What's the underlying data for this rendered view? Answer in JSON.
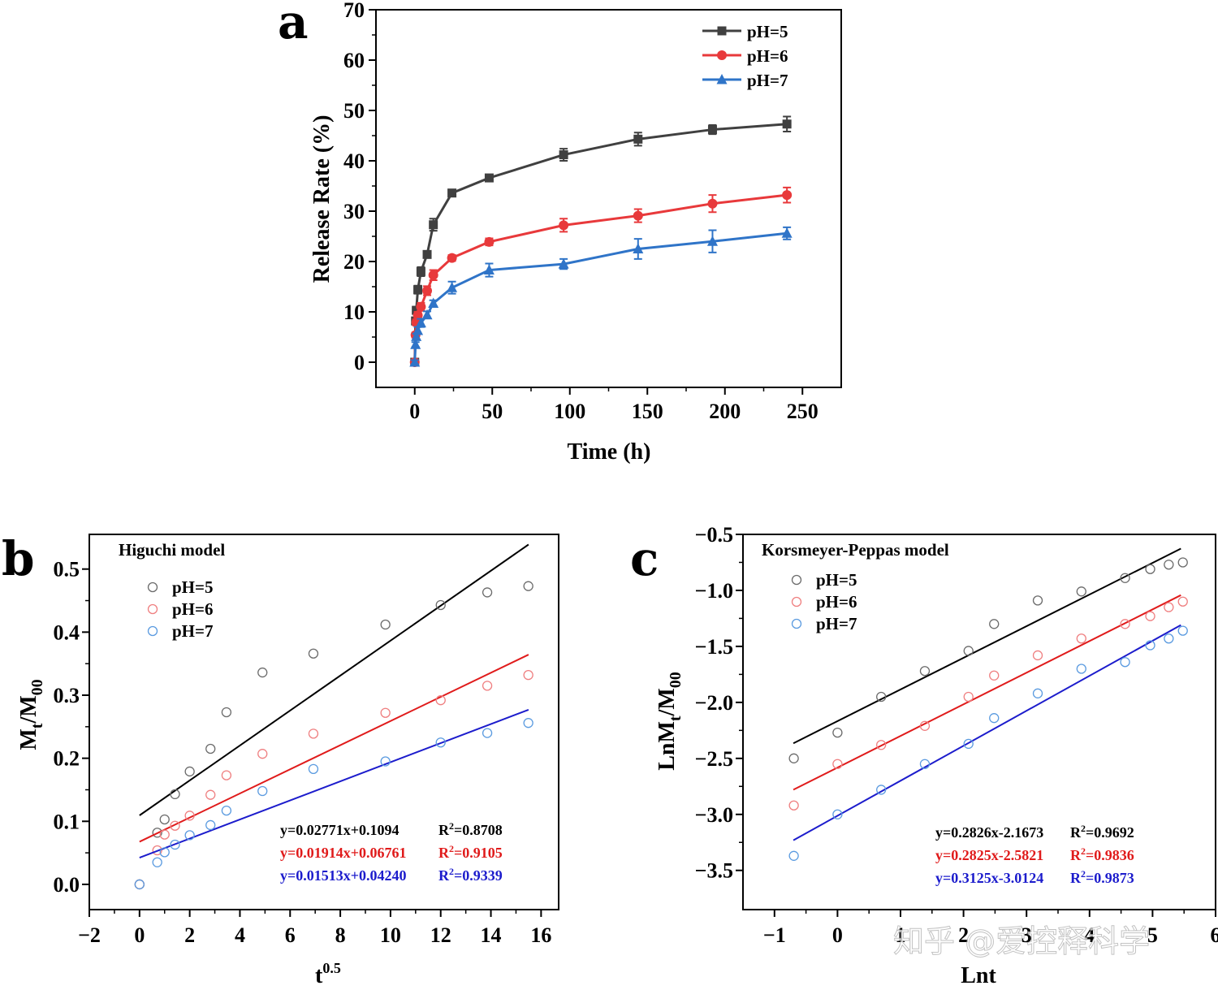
{
  "panels": {
    "a": "a",
    "b": "b",
    "c": "c"
  },
  "watermark": "知乎 @爱控释科学",
  "chart_data": [
    {
      "id": "a",
      "type": "line",
      "title": "",
      "xlabel": "Time (h)",
      "ylabel": "Release Rate (%)",
      "xlim": [
        -25,
        275
      ],
      "ylim": [
        -5,
        70
      ],
      "xticks": [
        0,
        50,
        100,
        150,
        200,
        250
      ],
      "yticks": [
        0,
        10,
        20,
        30,
        40,
        50,
        60,
        70
      ],
      "x": [
        0,
        0.5,
        1,
        2,
        4,
        8,
        12,
        24,
        48,
        96,
        144,
        192,
        240
      ],
      "legend_position": "top-right",
      "series": [
        {
          "name": "pH=5",
          "color": "#404040",
          "marker": "square",
          "values": [
            0,
            8.2,
            10.3,
            14.4,
            18.0,
            21.4,
            27.3,
            33.6,
            36.6,
            41.2,
            44.3,
            46.2,
            47.3
          ],
          "errors": [
            0.5,
            0.6,
            0.7,
            0.8,
            0.9,
            0.6,
            1.2,
            0.5,
            0.5,
            1.2,
            1.3,
            0.9,
            1.5
          ]
        },
        {
          "name": "pH=6",
          "color": "#e8393b",
          "marker": "circle",
          "values": [
            0,
            5.4,
            7.9,
            9.3,
            11.0,
            14.2,
            17.3,
            20.7,
            23.9,
            27.2,
            29.1,
            31.5,
            33.2
          ],
          "errors": [
            0.4,
            0.5,
            0.6,
            0.7,
            0.8,
            0.9,
            1.0,
            0.6,
            0.7,
            1.3,
            1.3,
            1.7,
            1.5
          ]
        },
        {
          "name": "pH=7",
          "color": "#2f74c8",
          "marker": "triangle",
          "values": [
            0,
            3.5,
            5.1,
            6.3,
            7.8,
            9.4,
            11.7,
            14.8,
            18.3,
            19.5,
            22.5,
            24.0,
            25.6
          ],
          "errors": [
            0.4,
            0.5,
            0.6,
            0.7,
            0.8,
            0.7,
            0.6,
            1.2,
            1.3,
            1.0,
            2.0,
            2.2,
            1.2
          ]
        }
      ]
    },
    {
      "id": "b",
      "type": "scatter",
      "title": "Higuchi model",
      "xlabel": "t0.5",
      "xlabel_base": "t",
      "xlabel_sup": "0.5",
      "ylabel_main": "M",
      "ylabel_sub1": "t",
      "ylabel_sep": "/M",
      "ylabel_sub2": "00",
      "xlim": [
        -2,
        16.7
      ],
      "ylim": [
        -0.04,
        0.555
      ],
      "xticks": [
        -2,
        0,
        2,
        4,
        6,
        8,
        10,
        12,
        14,
        16
      ],
      "yticks": [
        0.0,
        0.1,
        0.2,
        0.3,
        0.4,
        0.5
      ],
      "ytick_labels": [
        "0.0",
        "0.1",
        "0.2",
        "0.3",
        "0.4",
        "0.5"
      ],
      "x": [
        0,
        0.707,
        1,
        1.414,
        2,
        2.828,
        3.464,
        4.899,
        6.928,
        9.798,
        12,
        13.856,
        15.492
      ],
      "legend_position": "top-left",
      "fit_range": [
        0,
        15.5
      ],
      "series": [
        {
          "name": "pH=5",
          "color": "#6b6b6b",
          "line_color": "#000000",
          "values": [
            0,
            0.082,
            0.103,
            0.143,
            0.179,
            0.215,
            0.273,
            0.336,
            0.366,
            0.412,
            0.443,
            0.463,
            0.473
          ],
          "fit": {
            "slope": 0.02771,
            "intercept": 0.1094
          },
          "equation": "y=0.02771x+0.1094",
          "r2_value": "=0.8708",
          "eq_color": "#000000"
        },
        {
          "name": "pH=6",
          "color": "#ef7f80",
          "line_color": "#e01b1b",
          "values": [
            0,
            0.054,
            0.079,
            0.093,
            0.109,
            0.142,
            0.173,
            0.207,
            0.239,
            0.272,
            0.292,
            0.315,
            0.332
          ],
          "fit": {
            "slope": 0.01914,
            "intercept": 0.06761
          },
          "equation": "y=0.01914x+0.06761",
          "r2_value": "=0.9105",
          "eq_color": "#e01b1b"
        },
        {
          "name": "pH=7",
          "color": "#5b9be0",
          "line_color": "#1c1ccc",
          "values": [
            0,
            0.035,
            0.051,
            0.063,
            0.078,
            0.094,
            0.117,
            0.148,
            0.183,
            0.195,
            0.225,
            0.24,
            0.256
          ],
          "fit": {
            "slope": 0.01513,
            "intercept": 0.0424
          },
          "equation": "y=0.01513x+0.04240",
          "r2_value": "=0.9339",
          "eq_color": "#1c1ccc"
        }
      ]
    },
    {
      "id": "c",
      "type": "scatter",
      "title": "Korsmeyer-Peppas model",
      "xlabel": "Lnt",
      "ylabel_main": "LnM",
      "ylabel_sub1": "t",
      "ylabel_sep": "/M",
      "ylabel_sub2": "00",
      "xlim": [
        -1.5,
        6.0
      ],
      "ylim": [
        -3.85,
        -0.5
      ],
      "xticks": [
        -1,
        0,
        1,
        2,
        3,
        4,
        5,
        6
      ],
      "yticks": [
        -3.5,
        -3.0,
        -2.5,
        -2.0,
        -1.5,
        -1.0,
        -0.5
      ],
      "ytick_labels": [
        "−3.5",
        "−3.0",
        "−2.5",
        "−2.0",
        "−1.5",
        "−1.0",
        "−0.5"
      ],
      "xtick_labels": [
        "−1",
        "0",
        "1",
        "2",
        "3",
        "4",
        "5",
        "6"
      ],
      "x": [
        -0.693,
        0,
        0.693,
        1.386,
        2.079,
        2.485,
        3.178,
        3.871,
        4.564,
        4.963,
        5.257,
        5.481
      ],
      "legend_position": "top-left",
      "fit_range": [
        -0.7,
        5.45
      ],
      "series": [
        {
          "name": "pH=5",
          "color": "#6b6b6b",
          "line_color": "#000000",
          "values": [
            -2.5,
            -2.27,
            -1.95,
            -1.72,
            -1.54,
            -1.3,
            -1.09,
            -1.01,
            -0.89,
            -0.81,
            -0.77,
            -0.75
          ],
          "fit": {
            "slope": 0.2826,
            "intercept": -2.1673
          },
          "equation": "y=0.2826x-2.1673",
          "r2_value": "=0.9692",
          "eq_color": "#000000"
        },
        {
          "name": "pH=6",
          "color": "#ef7f80",
          "line_color": "#e01b1b",
          "values": [
            -2.92,
            -2.55,
            -2.38,
            -2.21,
            -1.95,
            -1.76,
            -1.58,
            -1.43,
            -1.3,
            -1.23,
            -1.15,
            -1.1
          ],
          "fit": {
            "slope": 0.2825,
            "intercept": -2.5821
          },
          "equation": "y=0.2825x-2.5821",
          "r2_value": "=0.9836",
          "eq_color": "#e01b1b"
        },
        {
          "name": "pH=7",
          "color": "#5b9be0",
          "line_color": "#1c1ccc",
          "values": [
            -3.37,
            -3.0,
            -2.78,
            -2.55,
            -2.37,
            -2.14,
            -1.92,
            -1.7,
            -1.64,
            -1.49,
            -1.43,
            -1.36
          ],
          "fit": {
            "slope": 0.3125,
            "intercept": -3.0124
          },
          "equation": "y=0.3125x-3.0124",
          "r2_value": "=0.9873",
          "eq_color": "#1c1ccc"
        }
      ]
    }
  ]
}
